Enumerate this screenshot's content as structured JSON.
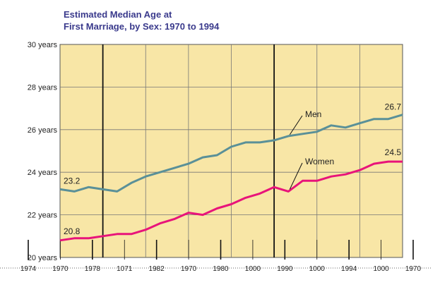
{
  "chart_data": {
    "type": "line",
    "title_line1": "Estimated Median Age at",
    "title_line2": "First Marriage, by Sex:  1970 to 1994",
    "y_tick_labels": [
      "30 years",
      "28 years",
      "26 years",
      "24 years",
      "22 years",
      "20 years"
    ],
    "ylim": [
      20,
      30
    ],
    "x": [
      1970,
      1971,
      1972,
      1973,
      1974,
      1975,
      1976,
      1977,
      1978,
      1979,
      1980,
      1981,
      1982,
      1983,
      1984,
      1985,
      1986,
      1987,
      1988,
      1989,
      1990,
      1991,
      1992,
      1993,
      1994
    ],
    "x_tick_labels": [
      "1974",
      "1970",
      "1978",
      "1071",
      "1982",
      "1970",
      "1980",
      "1000",
      "1990",
      "1000",
      "1994",
      "1000",
      "1970"
    ],
    "series": [
      {
        "name": "Men",
        "color": "#5a9098",
        "values": [
          23.2,
          23.1,
          23.3,
          23.2,
          23.1,
          23.5,
          23.8,
          24.0,
          24.2,
          24.4,
          24.7,
          24.8,
          25.2,
          25.4,
          25.4,
          25.5,
          25.7,
          25.8,
          25.9,
          26.2,
          26.1,
          26.3,
          26.5,
          26.5,
          26.7
        ],
        "start_label": "23.2",
        "end_label": "26.7"
      },
      {
        "name": "Women",
        "color": "#e8147a",
        "values": [
          20.8,
          20.9,
          20.9,
          21.0,
          21.1,
          21.1,
          21.3,
          21.6,
          21.8,
          22.1,
          22.0,
          22.3,
          22.5,
          22.8,
          23.0,
          23.3,
          23.1,
          23.6,
          23.6,
          23.8,
          23.9,
          24.1,
          24.4,
          24.5,
          24.5
        ],
        "start_label": "20.8",
        "end_label": "24.5"
      }
    ],
    "colors": {
      "plot_background": "#f8e6a6",
      "gridline": "#444444"
    }
  }
}
